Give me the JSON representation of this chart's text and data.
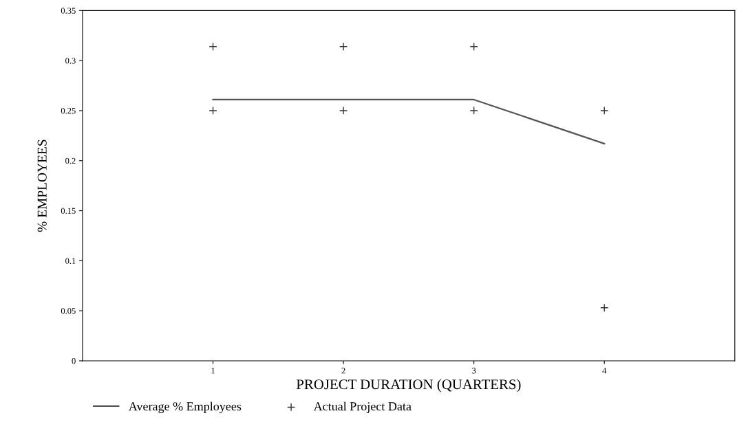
{
  "chart_data": {
    "type": "line",
    "xlabel": "PROJECT DURATION (QUARTERS)",
    "ylabel": "% EMPLOYEES",
    "x": [
      1,
      2,
      3,
      4
    ],
    "xlim": [
      0,
      5
    ],
    "xticks": [
      1,
      2,
      3,
      4
    ],
    "ylim": [
      0,
      0.35
    ],
    "yticks": [
      0,
      0.05,
      {
        "value": 0.1,
        "label": "0.1"
      },
      0.15,
      {
        "value": 0.2,
        "label": "0.2"
      },
      0.25,
      {
        "value": 0.3,
        "label": "0.3"
      },
      0.35
    ],
    "grid": false,
    "legend": "bottom",
    "series": [
      {
        "name": "Average % Employees",
        "color": "#555555",
        "marker": "none",
        "values": [
          0.261,
          0.261,
          0.261,
          0.217
        ]
      },
      {
        "name": "Actual Project Data",
        "type": "scatter",
        "color": "#333333",
        "marker": "cross",
        "x": [
          1,
          1,
          2,
          2,
          3,
          3,
          4,
          4
        ],
        "values": [
          0.314,
          0.25,
          0.314,
          0.25,
          0.314,
          0.25,
          0.25,
          0.053
        ]
      }
    ]
  }
}
